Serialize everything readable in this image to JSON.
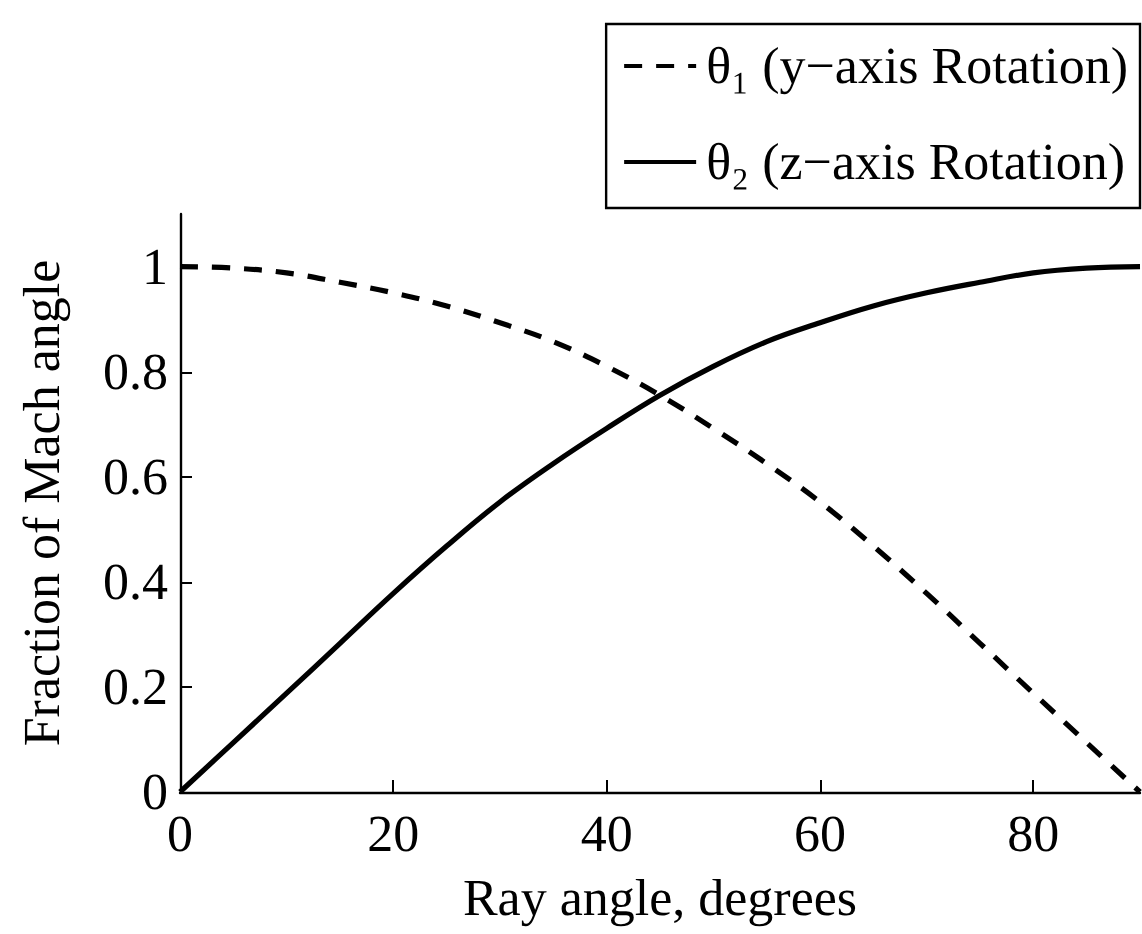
{
  "chart_data": {
    "type": "line",
    "xlabel": "Ray angle, degrees",
    "ylabel": "Fraction of Mach angle",
    "x": [
      0,
      5,
      10,
      15,
      20,
      25,
      30,
      35,
      40,
      45,
      50,
      55,
      60,
      65,
      70,
      75,
      80,
      85,
      90
    ],
    "series": [
      {
        "name": "θ₁ (y−axis Rotation)",
        "color": "#000000",
        "line_style": "dashed",
        "values": [
          1,
          0.997,
          0.988,
          0.97,
          0.95,
          0.925,
          0.893,
          0.857,
          0.81,
          0.755,
          0.692,
          0.625,
          0.552,
          0.468,
          0.378,
          0.283,
          0.188,
          0.094,
          0
        ]
      },
      {
        "name": "θ₂ (z−axis Rotation)",
        "color": "#000000",
        "line_style": "solid",
        "values": [
          0,
          0.094,
          0.188,
          0.283,
          0.378,
          0.468,
          0.552,
          0.625,
          0.692,
          0.755,
          0.81,
          0.857,
          0.893,
          0.925,
          0.95,
          0.97,
          0.988,
          0.997,
          1
        ]
      }
    ],
    "xlim": [
      0,
      90
    ],
    "xticks": [
      0,
      20,
      40,
      60,
      80
    ],
    "ylim": [
      0,
      1.1
    ],
    "yticks": [
      0,
      0.2,
      0.4,
      0.6,
      0.8,
      1
    ],
    "grid": false,
    "legend": "top right",
    "marker": "none"
  }
}
